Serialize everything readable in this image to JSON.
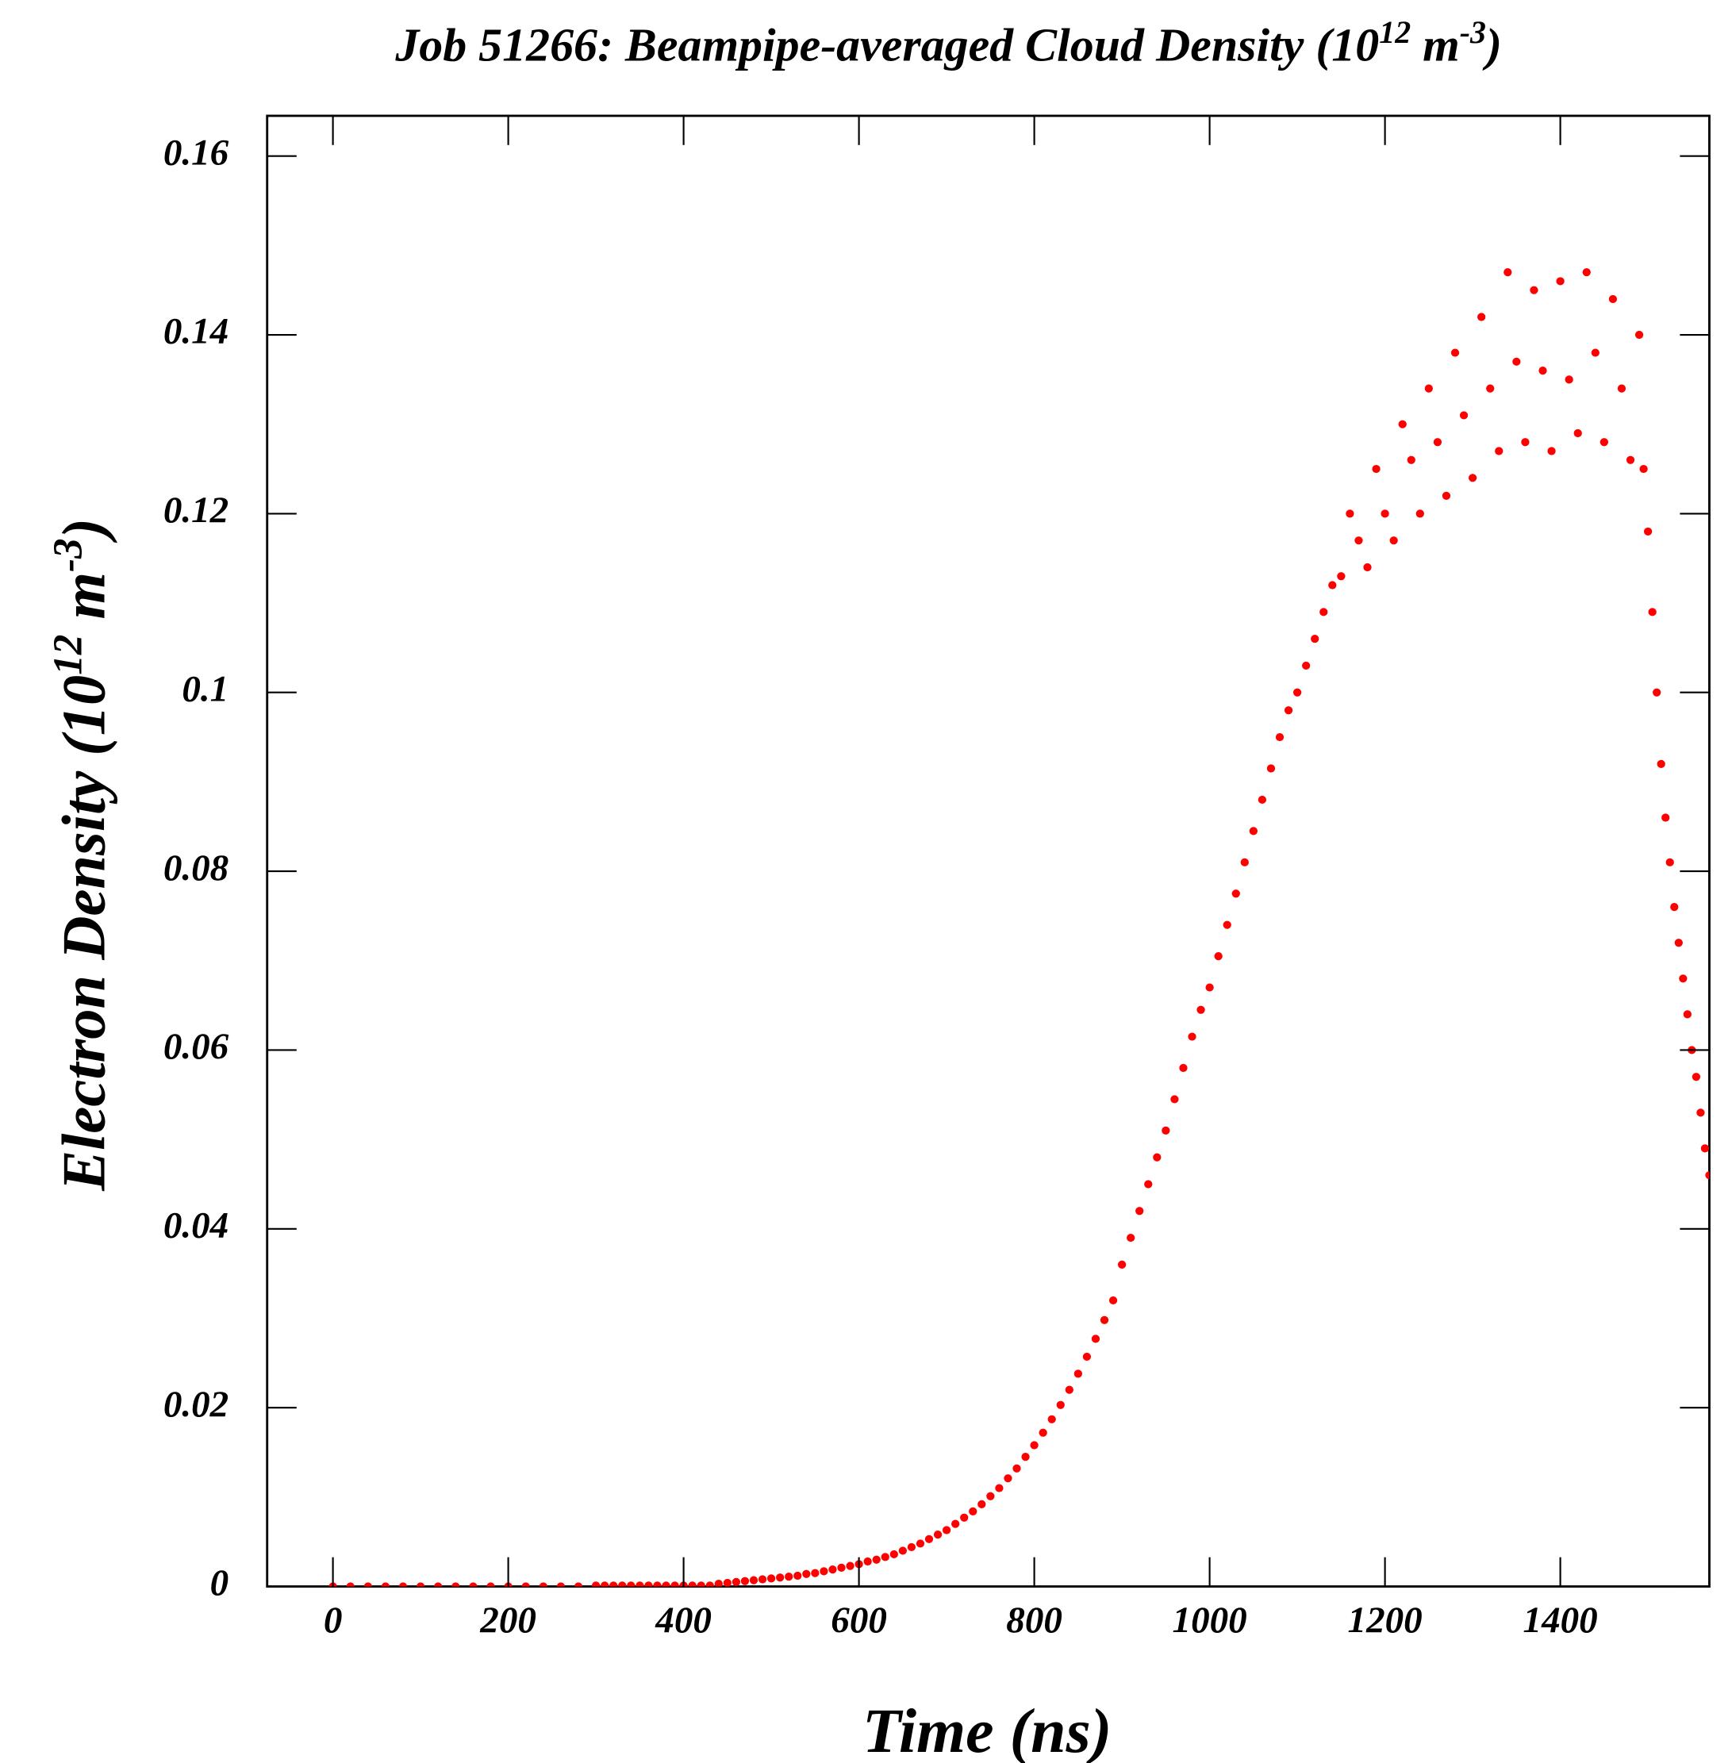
{
  "chart_data": {
    "type": "scatter",
    "title": [
      "Job 51266: Beampipe-averaged Cloud Density (10",
      "12",
      " m",
      "-3",
      ")"
    ],
    "x_label": "Time (ns)",
    "y_label": [
      "Electron Density (10",
      "12",
      " m",
      "-3",
      ")"
    ],
    "xlim": [
      -75,
      1570
    ],
    "ylim": [
      0,
      0.1645
    ],
    "xticks": [
      0,
      200,
      400,
      600,
      800,
      1000,
      1200,
      1400
    ],
    "yticks": [
      0,
      0.02,
      0.04,
      0.06,
      0.08,
      0.1,
      0.12,
      0.14,
      0.16
    ],
    "color": "#ff0000",
    "x": [
      0,
      20,
      40,
      60,
      80,
      100,
      120,
      140,
      160,
      180,
      200,
      220,
      240,
      260,
      280,
      300,
      310,
      320,
      330,
      340,
      350,
      360,
      370,
      380,
      390,
      400,
      410,
      420,
      430,
      440,
      450,
      460,
      470,
      480,
      490,
      500,
      510,
      520,
      530,
      540,
      550,
      560,
      570,
      580,
      590,
      600,
      610,
      620,
      630,
      640,
      650,
      660,
      670,
      680,
      690,
      700,
      710,
      720,
      730,
      740,
      750,
      760,
      770,
      780,
      790,
      800,
      810,
      820,
      830,
      840,
      850,
      860,
      870,
      880,
      890,
      900,
      910,
      920,
      930,
      940,
      950,
      960,
      970,
      980,
      990,
      1000,
      1010,
      1020,
      1030,
      1040,
      1050,
      1060,
      1070,
      1080,
      1090,
      1100,
      1110,
      1120,
      1130,
      1140,
      1150,
      1160,
      1170,
      1180,
      1190,
      1200,
      1210,
      1220,
      1230,
      1240,
      1250,
      1260,
      1270,
      1280,
      1290,
      1300,
      1310,
      1320,
      1330,
      1340,
      1350,
      1360,
      1370,
      1380,
      1390,
      1400,
      1410,
      1420,
      1430,
      1440,
      1450,
      1460,
      1470,
      1480,
      1490,
      1495,
      1500,
      1505,
      1510,
      1515,
      1520,
      1525,
      1530,
      1535,
      1540,
      1545,
      1550,
      1555,
      1560,
      1565,
      1570
    ],
    "values": [
      0,
      0,
      0,
      0,
      0,
      0,
      0,
      0,
      0,
      0,
      0,
      0,
      0,
      0,
      0,
      0.0001,
      0.0001,
      0.0001,
      0.0001,
      0.0001,
      0.0001,
      0.0001,
      0.0001,
      0.0001,
      0.0001,
      0.0001,
      0.0001,
      0.0001,
      0.0001,
      0.0003,
      0.0004,
      0.0005,
      0.0006,
      0.0007,
      0.0008,
      0.0009,
      0.001,
      0.0011,
      0.0012,
      0.0014,
      0.0015,
      0.0017,
      0.0019,
      0.0021,
      0.0023,
      0.0025,
      0.0028,
      0.003,
      0.0033,
      0.0036,
      0.004,
      0.0044,
      0.0048,
      0.0053,
      0.0058,
      0.0063,
      0.007,
      0.0077,
      0.0084,
      0.0092,
      0.0101,
      0.011,
      0.0121,
      0.0132,
      0.0145,
      0.0158,
      0.0172,
      0.0187,
      0.0203,
      0.022,
      0.0238,
      0.0257,
      0.0277,
      0.0298,
      0.032,
      0.036,
      0.039,
      0.042,
      0.045,
      0.048,
      0.051,
      0.0545,
      0.058,
      0.0615,
      0.0645,
      0.067,
      0.0705,
      0.074,
      0.0775,
      0.081,
      0.0845,
      0.088,
      0.0915,
      0.095,
      0.098,
      0.1,
      0.103,
      0.106,
      0.109,
      0.112,
      0.113,
      0.12,
      0.117,
      0.114,
      0.125,
      0.12,
      0.117,
      0.13,
      0.126,
      0.12,
      0.134,
      0.128,
      0.122,
      0.138,
      0.131,
      0.124,
      0.142,
      0.134,
      0.127,
      0.147,
      0.137,
      0.128,
      0.145,
      0.136,
      0.127,
      0.146,
      0.135,
      0.129,
      0.147,
      0.138,
      0.128,
      0.144,
      0.134,
      0.126,
      0.14,
      0.125,
      0.118,
      0.109,
      0.1,
      0.092,
      0.086,
      0.081,
      0.076,
      0.072,
      0.068,
      0.064,
      0.06,
      0.057,
      0.053,
      0.049,
      0.046
    ]
  }
}
